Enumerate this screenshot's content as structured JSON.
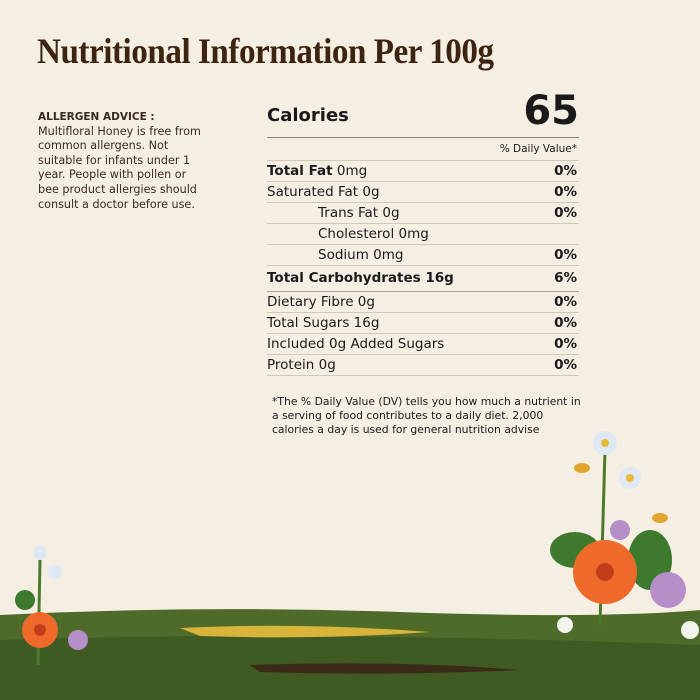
{
  "title": "Nutritional Information Per 100g",
  "allergen": {
    "heading": "ALLERGEN ADVICE :",
    "text": "Multifloral Honey is free from common allergens. Not suitable for infants under 1 year. People with pollen or bee product allergies should consult a doctor before use."
  },
  "calories": {
    "label": "Calories",
    "value": "65"
  },
  "daily_value_header": "% Daily Value*",
  "rows": [
    {
      "bold": "Total Fat",
      "rest": " 0mg",
      "pct": "0%"
    },
    {
      "bold": "",
      "rest": "Saturated Fat 0g",
      "pct": "0%"
    },
    {
      "bold": "",
      "rest": "Trans Fat 0g",
      "pct": "0%"
    },
    {
      "bold": "",
      "rest": "Cholesterol 0mg",
      "pct": ""
    },
    {
      "bold": "",
      "rest": "Sodium 0mg",
      "pct": "0%"
    },
    {
      "bold": "Total Carbohydrates 16g",
      "rest": "",
      "pct": "6%"
    },
    {
      "bold": "",
      "rest": "Dietary Fibre 0g",
      "pct": "0%"
    },
    {
      "bold": "",
      "rest": "Total Sugars 16g",
      "pct": "0%"
    },
    {
      "bold": "",
      "rest": "Included 0g Added Sugars",
      "pct": "0%"
    },
    {
      "bold": "",
      "rest": "Protein 0g",
      "pct": "0%"
    }
  ],
  "footnote": "*The % Daily Value (DV) tells you how much a nutrient in a serving of food contributes to a daily diet. 2,000 calories a day is used for general nutrition advise",
  "colors": {
    "background": "#f5efe3",
    "title": "#3d2410",
    "ground": "#4e6b2a"
  }
}
